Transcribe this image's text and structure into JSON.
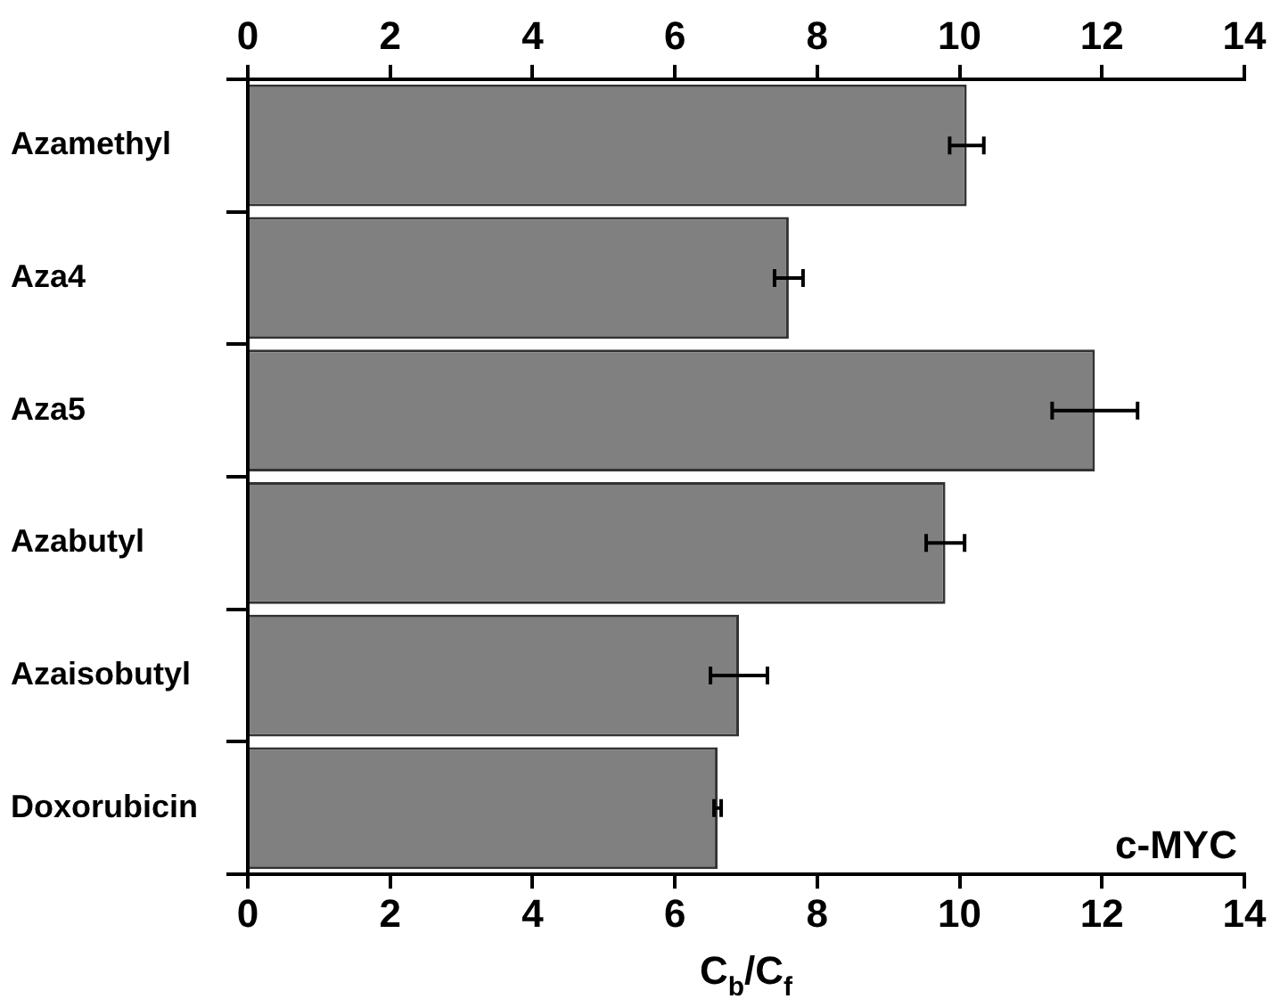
{
  "chart_data": {
    "type": "bar",
    "orientation": "horizontal",
    "categories": [
      "Azamethyl",
      "Aza4",
      "Aza5",
      "Azabutyl",
      "Azaisobutyl",
      "Doxorubicin"
    ],
    "values": [
      10.1,
      7.6,
      11.9,
      9.8,
      6.9,
      6.6
    ],
    "errors": [
      0.24,
      0.2,
      0.6,
      0.27,
      0.4,
      0.05
    ],
    "color": "#808080",
    "xlim": [
      0,
      14
    ],
    "xticks": [
      0,
      2,
      4,
      6,
      8,
      10,
      12,
      14
    ],
    "x2lim": [
      0,
      14
    ],
    "x2ticks": [
      0,
      2,
      4,
      6,
      8,
      10,
      12,
      14
    ],
    "xlabel": "C$_{b}$/C$_{f}$",
    "annotations": [
      "c-MYC"
    ],
    "grid": false,
    "legend": false
  }
}
